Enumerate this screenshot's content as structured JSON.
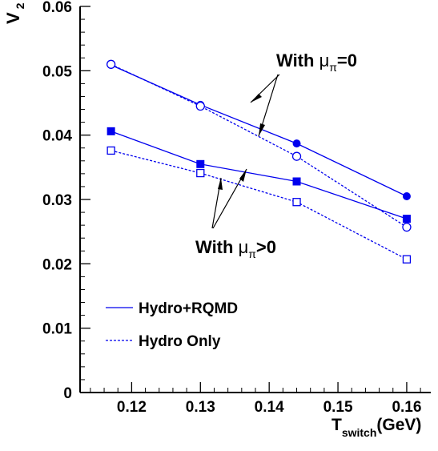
{
  "chart_data": {
    "type": "line",
    "xlabel": {
      "main": "T",
      "sub": "switch",
      "unit": "(GeV)"
    },
    "ylabel": {
      "main": "V",
      "sub": "2"
    },
    "xlim": [
      0.1125,
      0.1635
    ],
    "ylim": [
      0,
      0.06
    ],
    "x_ticks": [
      "0.12",
      "0.13",
      "0.14",
      "0.15",
      "0.16"
    ],
    "y_ticks": [
      "0",
      "0.01",
      "0.02",
      "0.03",
      "0.04",
      "0.05",
      "0.06"
    ],
    "grid": false,
    "color": "#0000ee",
    "series": [
      {
        "group": "mu0",
        "mode": "Hydro+RQMD",
        "line": "solid",
        "marker": "filled-circle",
        "x": [
          0.117,
          0.13,
          0.144,
          0.16
        ],
        "y": [
          0.0509,
          0.0447,
          0.0387,
          0.0305
        ]
      },
      {
        "group": "mu0",
        "mode": "Hydro Only",
        "line": "dashed",
        "marker": "open-circle",
        "x": [
          0.117,
          0.13,
          0.144,
          0.16
        ],
        "y": [
          0.051,
          0.0445,
          0.0367,
          0.0257
        ]
      },
      {
        "group": "mupos",
        "mode": "Hydro+RQMD",
        "line": "solid",
        "marker": "filled-square",
        "x": [
          0.117,
          0.13,
          0.144,
          0.16
        ],
        "y": [
          0.0406,
          0.0355,
          0.0328,
          0.027
        ]
      },
      {
        "group": "mupos",
        "mode": "Hydro Only",
        "line": "dashed",
        "marker": "open-square",
        "x": [
          0.117,
          0.13,
          0.144,
          0.16
        ],
        "y": [
          0.0376,
          0.0341,
          0.0296,
          0.0207
        ]
      }
    ],
    "annotations": {
      "mu0": {
        "prefix": "With ",
        "sym": "μ",
        "sub": "π",
        "suffix": "=0"
      },
      "mupos": {
        "prefix": "With ",
        "sym": "μ",
        "sub": "π",
        "suffix": ">0"
      }
    },
    "legend": {
      "position": "bottom-left",
      "entries": [
        {
          "label": "Hydro+RQMD",
          "line": "solid"
        },
        {
          "label": "Hydro Only",
          "line": "dashed"
        }
      ]
    }
  }
}
